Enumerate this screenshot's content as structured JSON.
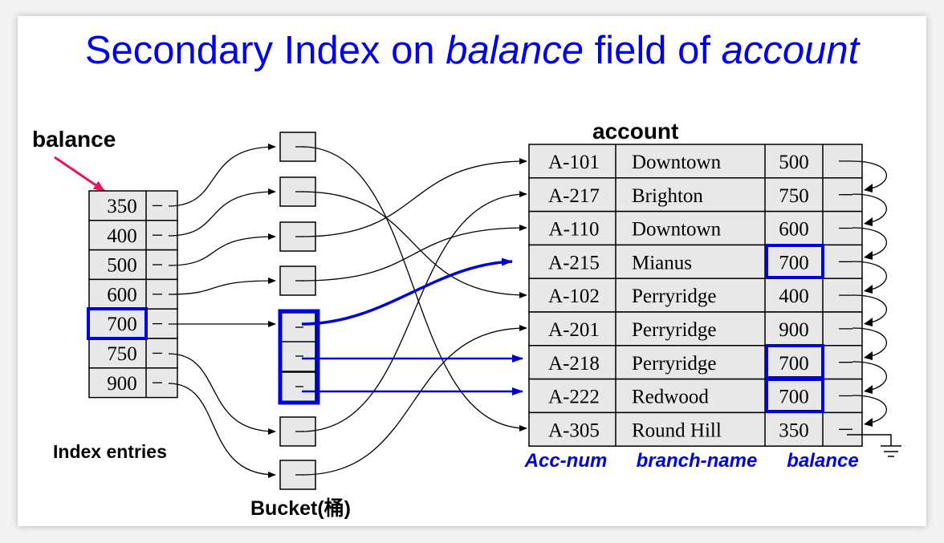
{
  "slide": {
    "title_prefix": "Secondary Index on ",
    "title_field": "balance",
    "title_middle": " field of ",
    "title_relation": "account"
  },
  "colors": {
    "title": "#0000ee",
    "highlight": "#0000dd",
    "pointer": "#e8155e",
    "cell_fill": "#e8e8e8"
  },
  "labels": {
    "balance_label": "balance",
    "index_entries": "Index entries",
    "bucket": "Bucket(桶)",
    "relation_name": "account"
  },
  "index_entries": [
    "350",
    "400",
    "500",
    "600",
    "700",
    "750",
    "900"
  ],
  "highlighted_index_key": "700",
  "account": {
    "columns": [
      "Acc-num",
      "branch-name",
      "balance"
    ],
    "rows": [
      {
        "acc": "A-101",
        "branch": "Downtown",
        "balance": "500"
      },
      {
        "acc": "A-217",
        "branch": "Brighton",
        "balance": "750"
      },
      {
        "acc": "A-110",
        "branch": "Downtown",
        "balance": "600"
      },
      {
        "acc": "A-215",
        "branch": "Mianus",
        "balance": "700"
      },
      {
        "acc": "A-102",
        "branch": "Perryridge",
        "balance": "400"
      },
      {
        "acc": "A-201",
        "branch": "Perryridge",
        "balance": "900"
      },
      {
        "acc": "A-218",
        "branch": "Perryridge",
        "balance": "700"
      },
      {
        "acc": "A-222",
        "branch": "Redwood",
        "balance": "700"
      },
      {
        "acc": "A-305",
        "branch": "Round Hill",
        "balance": "350"
      }
    ]
  }
}
